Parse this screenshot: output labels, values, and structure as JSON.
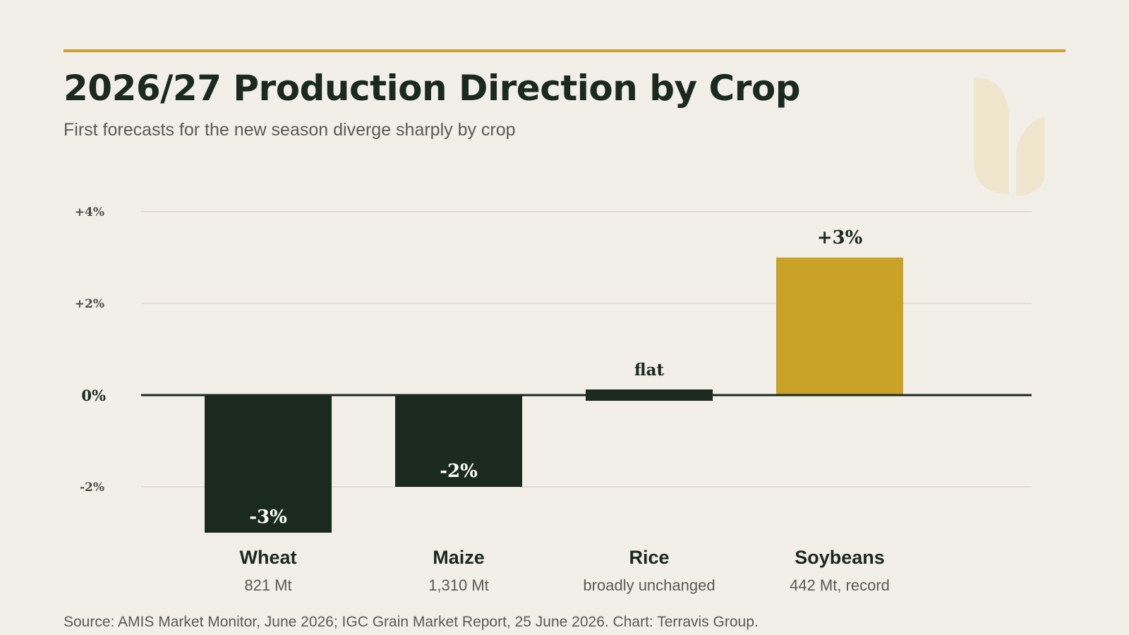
{
  "header": {
    "title": "2026/27 Production Direction by Crop",
    "subtitle": "First forecasts for the new season diverge sharply by crop"
  },
  "footer": {
    "source": "Source: AMIS Market Monitor, June 2026; IGC Grain Market Report, 25 June 2026. Chart: Terravis Group."
  },
  "colors": {
    "accent": "#c9a227",
    "dark": "#1b2a1e",
    "background": "#f2efe9"
  },
  "decoration": {
    "icon": "leaf-icon"
  },
  "chart_data": {
    "type": "bar",
    "title": "",
    "xlabel": "",
    "ylabel": "",
    "ylim": [
      -3,
      4
    ],
    "yticks": [
      {
        "value": 4,
        "label": "+4%"
      },
      {
        "value": 2,
        "label": "+2%"
      },
      {
        "value": 0,
        "label": "0%"
      },
      {
        "value": -2,
        "label": "-2%"
      }
    ],
    "grid": true,
    "categories": [
      {
        "name": "Wheat",
        "sublabel": "821 Mt",
        "value": -3,
        "value_label": "-3%",
        "color": "#1b2a1e"
      },
      {
        "name": "Maize",
        "sublabel": "1,310 Mt",
        "value": -2,
        "value_label": "-2%",
        "color": "#1b2a1e"
      },
      {
        "name": "Rice",
        "sublabel": "broadly unchanged",
        "value": 0,
        "value_label": "flat",
        "color": "#1b2a1e"
      },
      {
        "name": "Soybeans",
        "sublabel": "442 Mt, record",
        "value": 3,
        "value_label": "+3%",
        "color": "#c9a227"
      }
    ]
  }
}
